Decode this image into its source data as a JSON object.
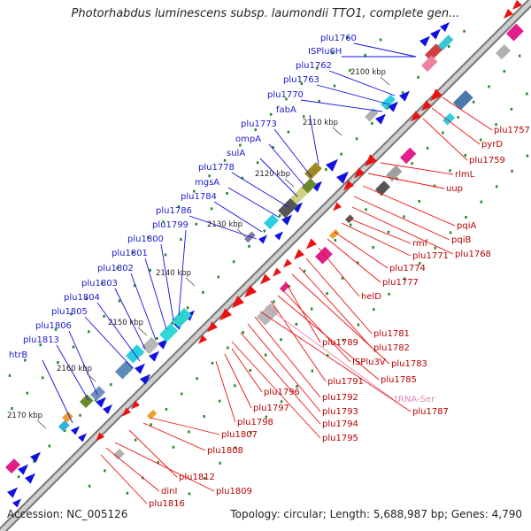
{
  "title": "Photorhabdus luminescens subsp. laumondii TTO1, complete gen...",
  "footer": {
    "accession": "Accession: NC_005126",
    "topology": "Topology: circular; Length: 5,688,987 bp; Genes: 4,790"
  },
  "colors": {
    "forward_label": "#1a1acc",
    "reverse_label": "#dd0000",
    "rna_label": "#e08ab8",
    "forward_gene": "#1010e0",
    "reverse_gene": "#ee1010",
    "backbone": "#a0a0a0",
    "tick": "#2a8a2a"
  },
  "ruler": [
    "2100 kbp",
    "2110 kbp",
    "2120 kbp",
    "2130 kbp",
    "2140 kbp",
    "2150 kbp",
    "2160 kbp",
    "2170 kbp"
  ],
  "forward_genes": [
    "plu1760",
    "ISPlu6H",
    "plu1762",
    "plu1763",
    "plu1770",
    "fabA",
    "plu1773",
    "ompA",
    "sulA",
    "plu1778",
    "mgsA",
    "plu1784",
    "plu1786",
    "plu1799",
    "plu1800",
    "plu1801",
    "plu1802",
    "plu1803",
    "plu1804",
    "plu1805",
    "plu1806",
    "plu1813",
    "htrB"
  ],
  "reverse_genes": [
    "plu1757",
    "pyrD",
    "plu1759",
    "rlmL",
    "uup",
    "pqiA",
    "pqiB",
    "plu1768",
    "rmf",
    "plu1771",
    "plu1774",
    "plu1777",
    "helD",
    "plu1781",
    "plu1782",
    "plu1783",
    "plu1789",
    "ISPlu3V",
    "plu1785",
    "plu1791",
    "tRNA-Ser",
    "plu1787",
    "plu1792",
    "plu1793",
    "plu1794",
    "plu1795",
    "plu1796",
    "plu1797",
    "plu1798",
    "plu1807",
    "plu1808",
    "plu1812",
    "plu1809",
    "dinI",
    "plu1816"
  ]
}
